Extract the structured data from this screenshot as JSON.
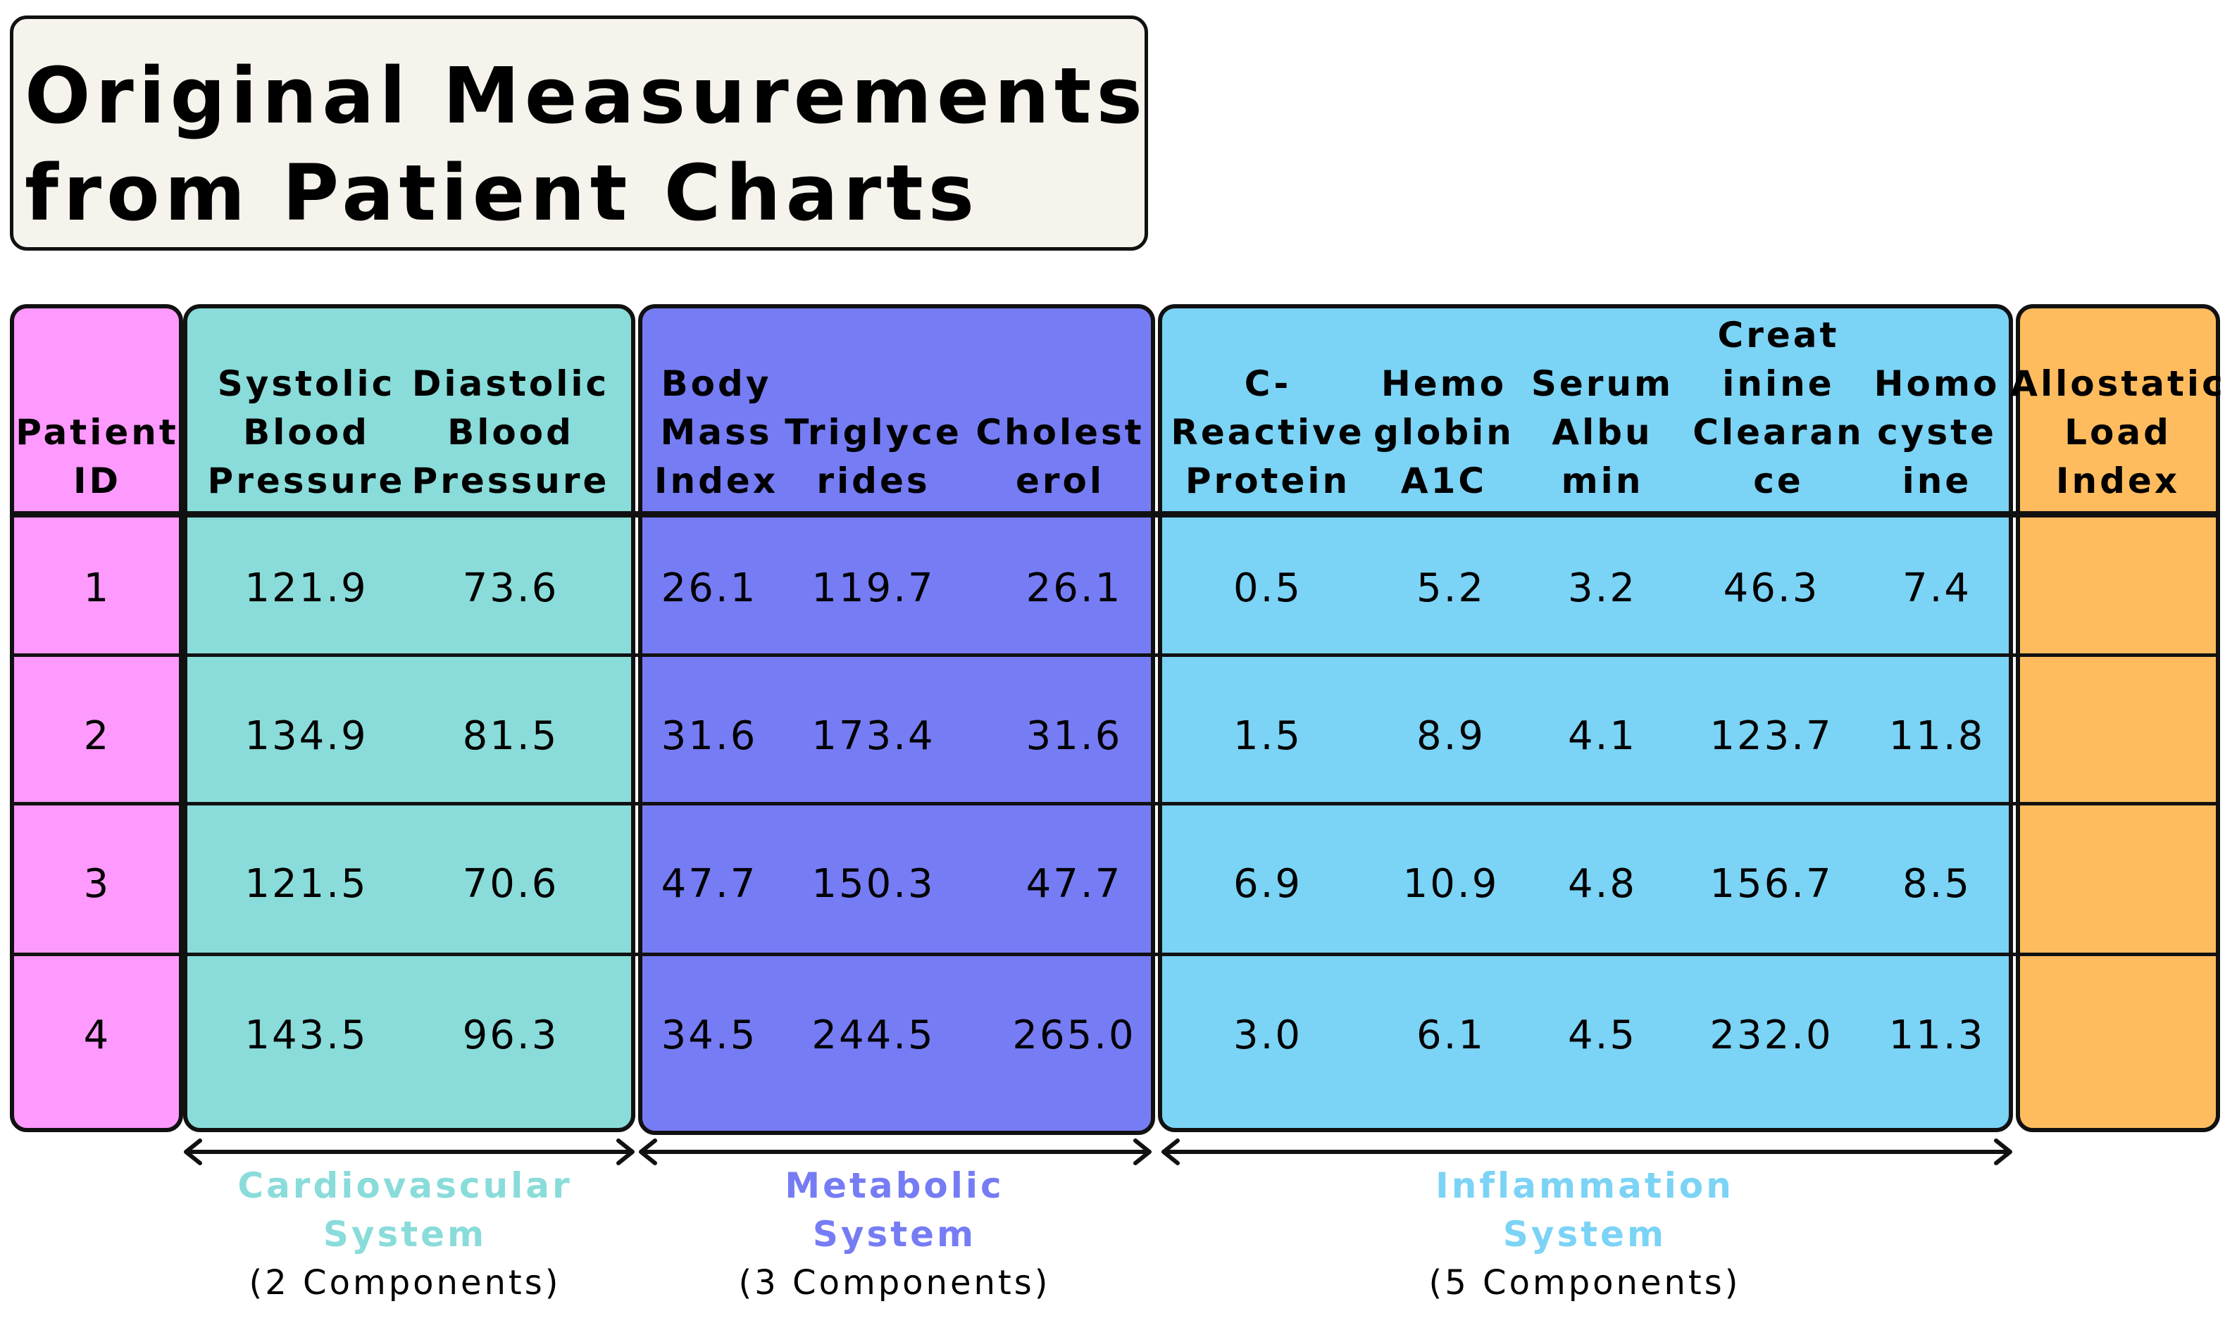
{
  "title": {
    "line1": "Original Measurements",
    "line2": "from Patient Charts"
  },
  "columns": {
    "id": "Patient\nID",
    "sbp": "Systolic\nBlood\nPressure",
    "dbp": "Diastolic\nBlood\nPressure",
    "bmi": "Body\nMass\nIndex",
    "trig": "Triglyce\nrides",
    "chol": "Cholest\nerol",
    "crp": "C-\nReactive\nProtein",
    "hba1c": "Hemo\nglobin\nA1C",
    "alb": "Serum\nAlbu\nmin",
    "crcl": "Creat\ninine\nClearan\nce",
    "hcy": "Homo\ncyste\nine",
    "ali": "Allostatic\nLoad\nIndex"
  },
  "rows": [
    {
      "id": "1",
      "sbp": "121.9",
      "dbp": "73.6",
      "bmi": "26.1",
      "trig": "119.7",
      "chol": "26.1",
      "crp": "0.5",
      "hba1c": "5.2",
      "alb": "3.2",
      "crcl": "46.3",
      "hcy": "7.4",
      "ali": ""
    },
    {
      "id": "2",
      "sbp": "134.9",
      "dbp": "81.5",
      "bmi": "31.6",
      "trig": "173.4",
      "chol": "31.6",
      "crp": "1.5",
      "hba1c": "8.9",
      "alb": "4.1",
      "crcl": "123.7",
      "hcy": "11.8",
      "ali": ""
    },
    {
      "id": "3",
      "sbp": "121.5",
      "dbp": "70.6",
      "bmi": "47.7",
      "trig": "150.3",
      "chol": "47.7",
      "crp": "6.9",
      "hba1c": "10.9",
      "alb": "4.8",
      "crcl": "156.7",
      "hcy": "8.5",
      "ali": ""
    },
    {
      "id": "4",
      "sbp": "143.5",
      "dbp": "96.3",
      "bmi": "34.5",
      "trig": "244.5",
      "chol": "265.0",
      "crp": "3.0",
      "hba1c": "6.1",
      "alb": "4.5",
      "crcl": "232.0",
      "hcy": "11.3",
      "ali": ""
    }
  ],
  "groups": {
    "cardio": {
      "name": "Cardiovascular\nSystem",
      "count": "(2 Components)",
      "color": "#89dcd9"
    },
    "metabolic": {
      "name": "Metabolic\nSystem",
      "count": "(3 Components)",
      "color": "#767cf4"
    },
    "inflammation": {
      "name": "Inflammation\nSystem",
      "count": "(5 Components)",
      "color": "#7bd3f5"
    }
  },
  "colors": {
    "patient_id": "#fe99fe",
    "cardio": "#89dcd9",
    "metabolic": "#767cf4",
    "inflammation": "#7bd3f5",
    "allostatic": "#ffbc5e",
    "title_bg": "#f6f3ec"
  }
}
